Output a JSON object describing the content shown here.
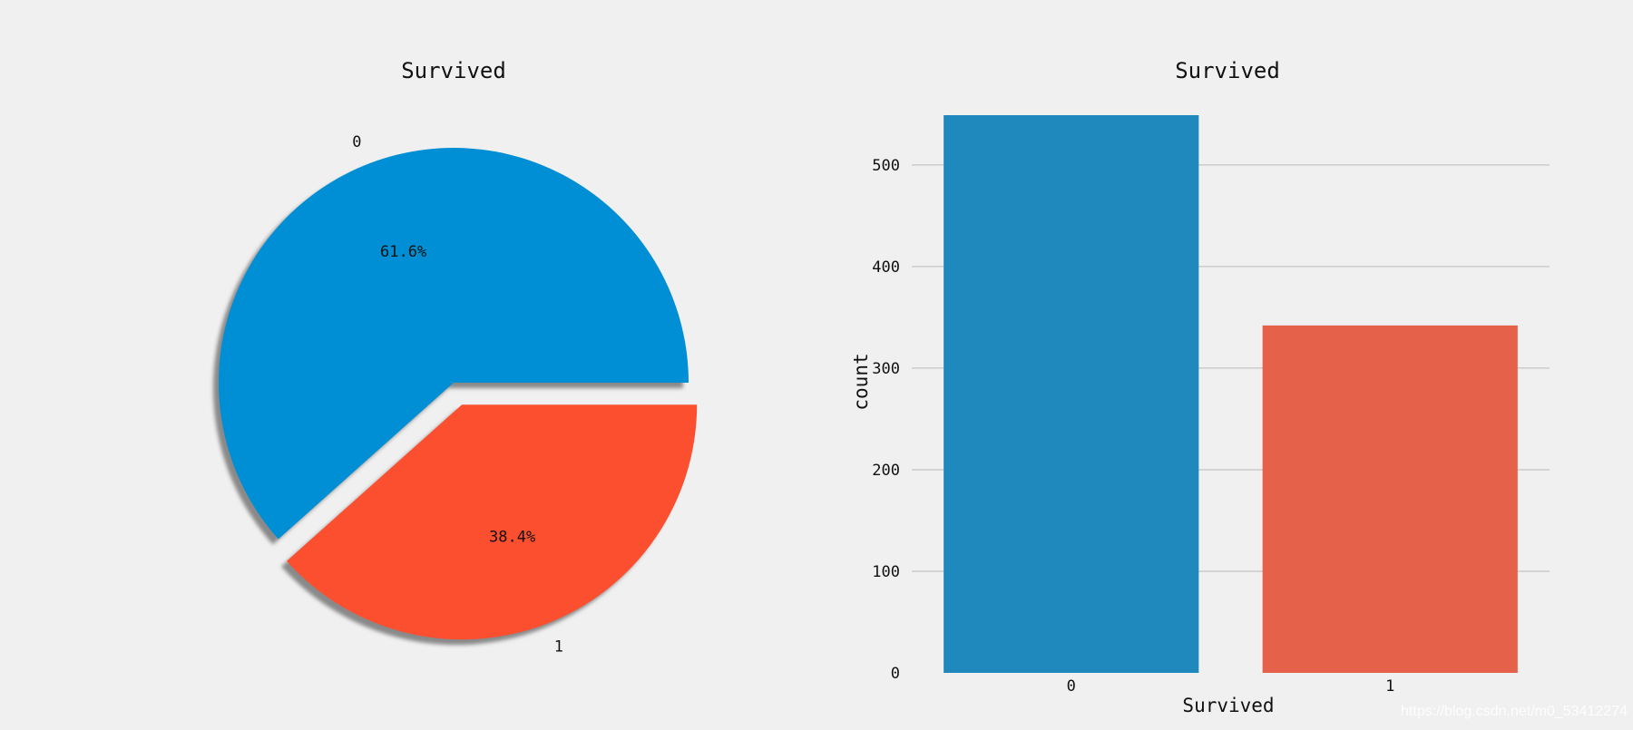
{
  "chart_data": [
    {
      "type": "pie",
      "title": "Survived",
      "categories": [
        "0",
        "1"
      ],
      "values": [
        61.6,
        38.4
      ],
      "value_labels": [
        "61.6%",
        "38.4%"
      ],
      "colors": [
        "#008fd5",
        "#fc4f30"
      ],
      "explode": [
        0,
        0.1
      ],
      "shadow": true
    },
    {
      "type": "bar",
      "title": "Survived",
      "categories": [
        "0",
        "1"
      ],
      "values": [
        549,
        342
      ],
      "colors": [
        "#1f88bd",
        "#e5614a"
      ],
      "xlabel": "Survived",
      "ylabel": "count",
      "yticks": [
        0,
        100,
        200,
        300,
        400,
        500
      ],
      "ylim": [
        0,
        549
      ],
      "grid": "y"
    }
  ],
  "watermark": "https://blog.csdn.net/m0_53412274"
}
